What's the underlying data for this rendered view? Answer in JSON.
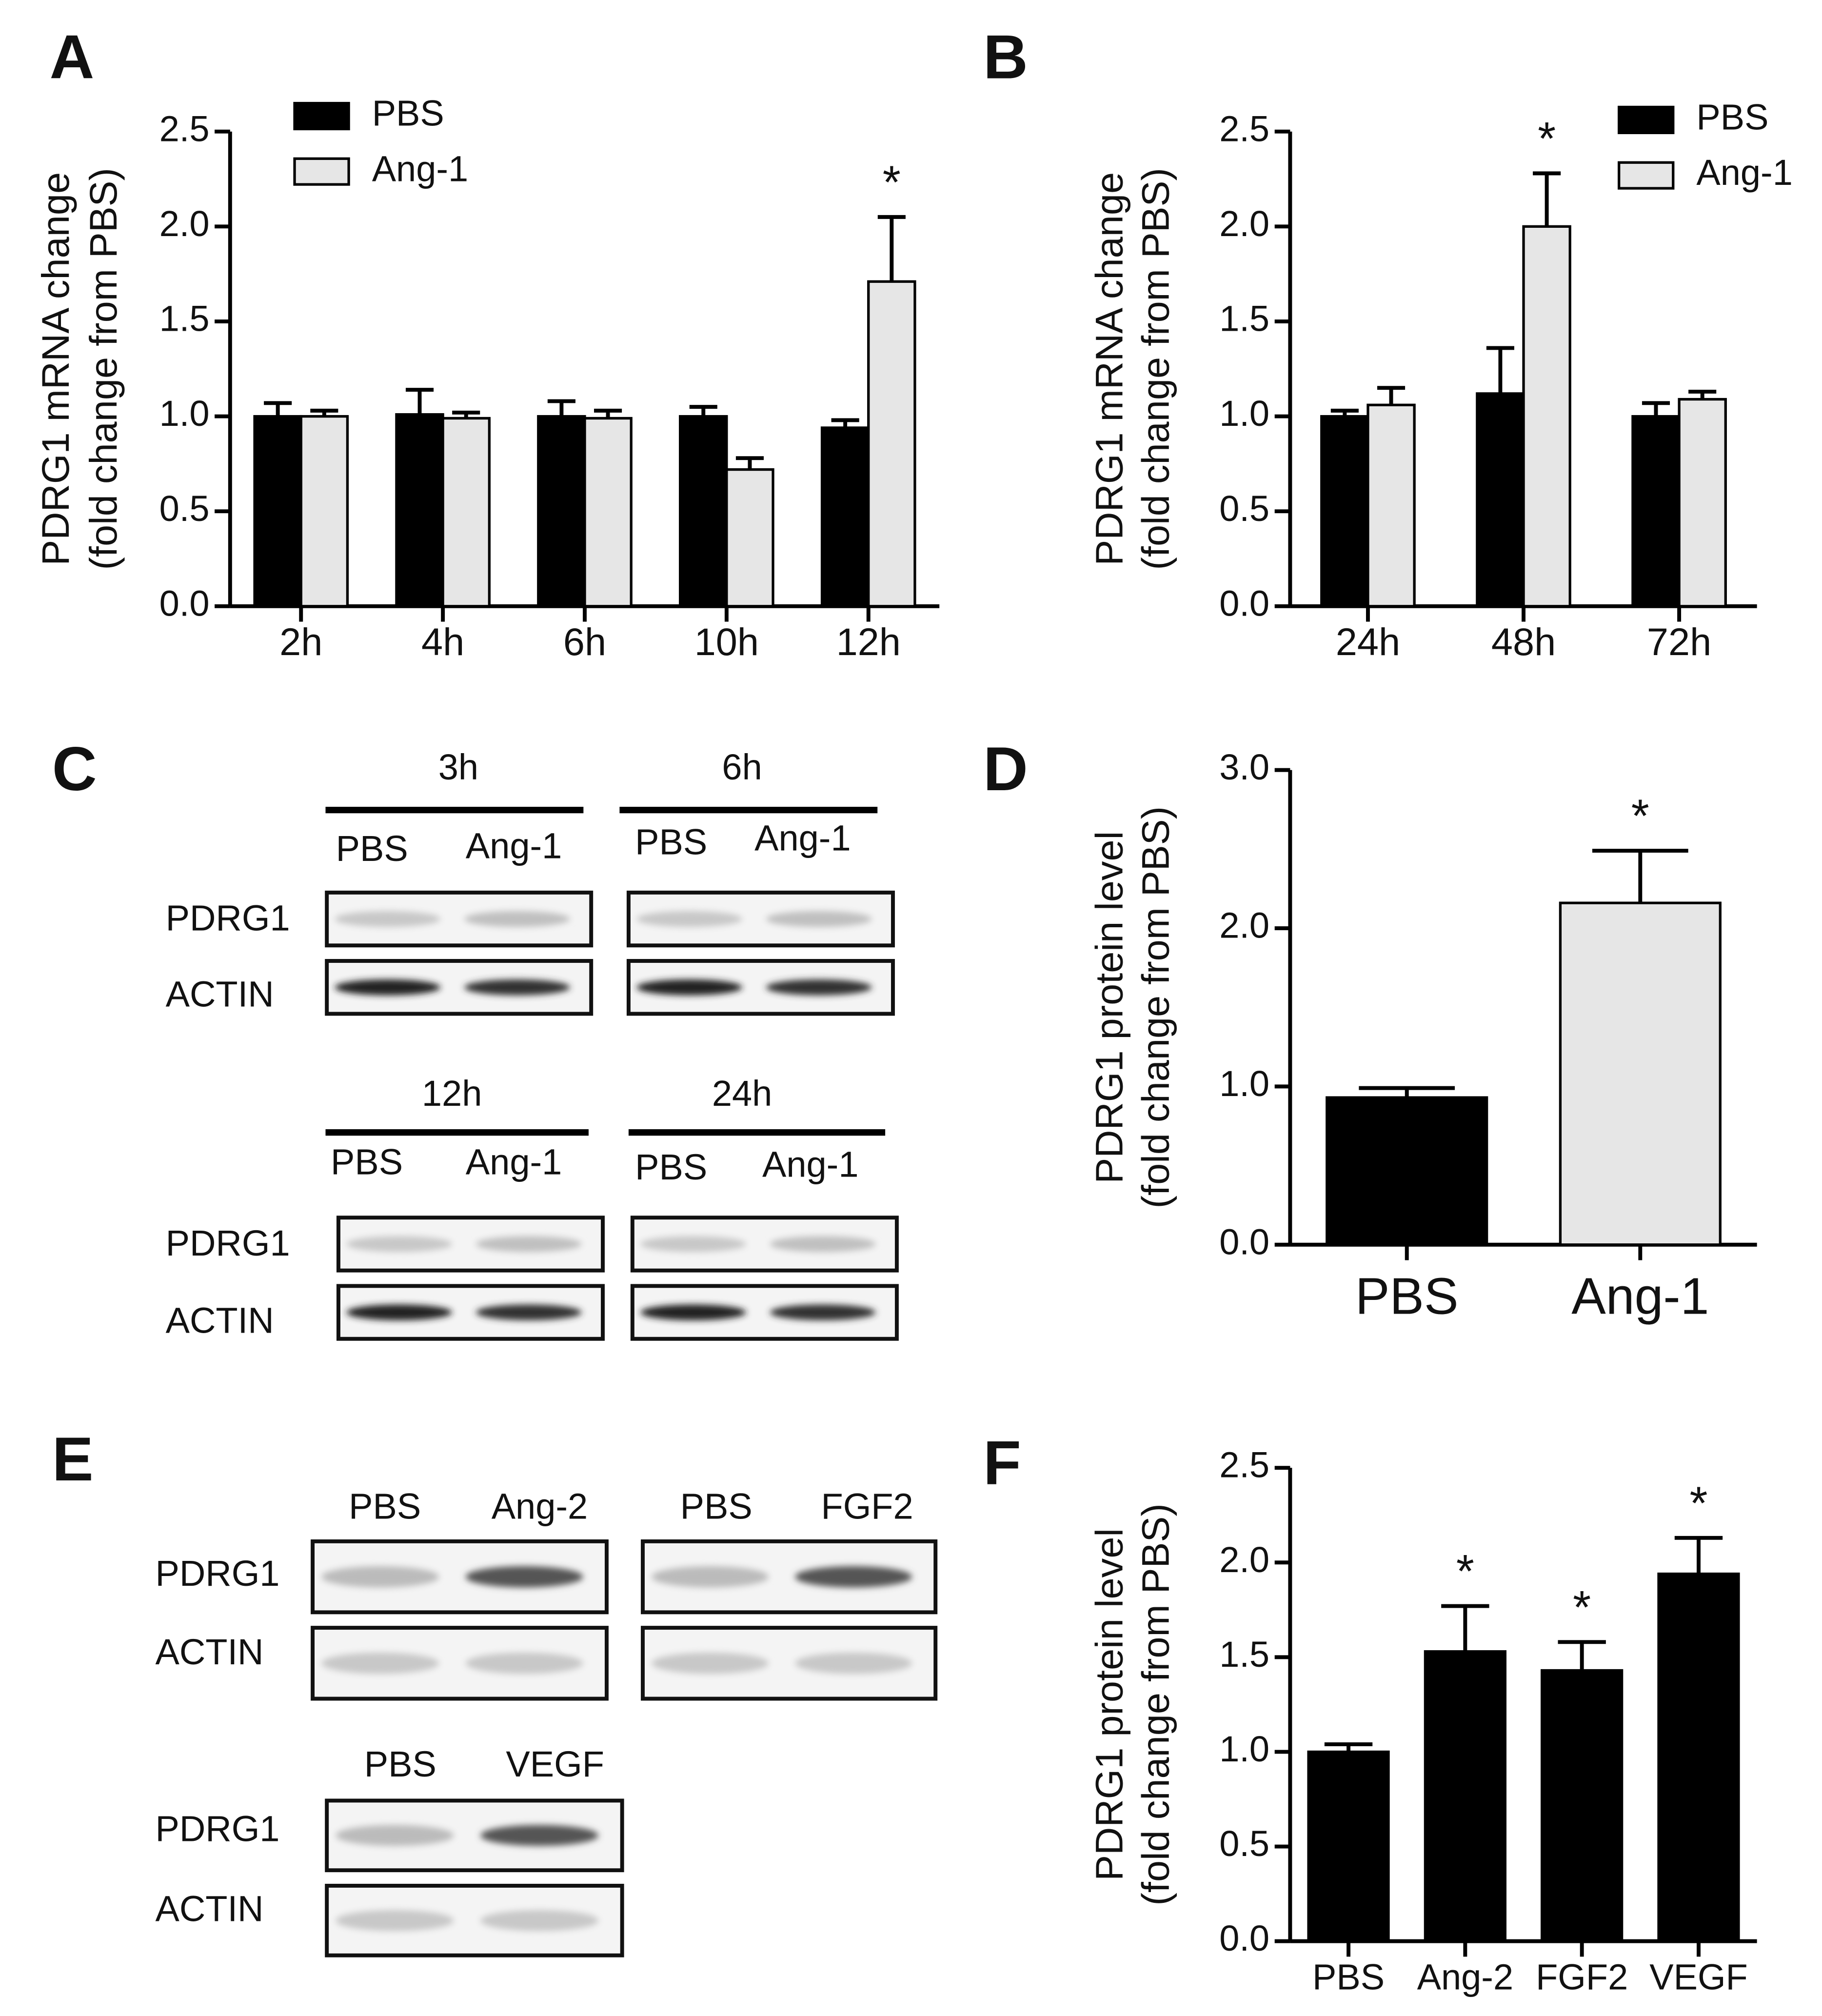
{
  "chart_data": [
    {
      "type": "bar",
      "panel": "A",
      "categories": [
        "2h",
        "4h",
        "6h",
        "10h",
        "12h"
      ],
      "series": [
        {
          "name": "PBS",
          "color": "#000000",
          "values": [
            1.0,
            1.01,
            1.0,
            1.0,
            0.94
          ],
          "errors": [
            0.07,
            0.13,
            0.08,
            0.05,
            0.04
          ],
          "markers": [
            null,
            null,
            null,
            null,
            null
          ]
        },
        {
          "name": "Ang-1",
          "color": "#e6e6e6",
          "values": [
            1.0,
            0.99,
            0.99,
            0.72,
            1.71
          ],
          "errors": [
            0.03,
            0.03,
            0.04,
            0.06,
            0.34
          ],
          "markers": [
            null,
            null,
            null,
            null,
            "*"
          ]
        }
      ],
      "ylabel": [
        "PDRG1 mRNA change",
        "(fold change from PBS)"
      ],
      "ylim": [
        0,
        2.5
      ],
      "yticks": [
        {
          "value": 0,
          "label": "0.0"
        },
        {
          "value": 0.5,
          "label": "0.5"
        },
        {
          "value": 1,
          "label": "1.0"
        },
        {
          "value": 1.5,
          "label": "1.5"
        },
        {
          "value": 2,
          "label": "2.0"
        },
        {
          "value": 2.5,
          "label": "2.5"
        }
      ],
      "legend": "upper left"
    },
    {
      "type": "bar",
      "panel": "B",
      "categories": [
        "24h",
        "48h",
        "72h"
      ],
      "series": [
        {
          "name": "PBS",
          "color": "#000000",
          "values": [
            1.0,
            1.12,
            1.0
          ],
          "errors": [
            0.03,
            0.24,
            0.07
          ],
          "markers": [
            null,
            null,
            null
          ]
        },
        {
          "name": "Ang-1",
          "color": "#e6e6e6",
          "values": [
            1.06,
            2.0,
            1.09
          ],
          "errors": [
            0.09,
            0.28,
            0.04
          ],
          "markers": [
            null,
            "*",
            null
          ]
        }
      ],
      "ylabel": [
        "PDRG1 mRNA change",
        "(fold change from PBS)"
      ],
      "ylim": [
        0,
        2.5
      ],
      "yticks": [
        {
          "value": 0,
          "label": "0.0"
        },
        {
          "value": 0.5,
          "label": "0.5"
        },
        {
          "value": 1,
          "label": "1.0"
        },
        {
          "value": 1.5,
          "label": "1.5"
        },
        {
          "value": 2,
          "label": "2.0"
        },
        {
          "value": 2.5,
          "label": "2.5"
        }
      ],
      "legend": "upper right"
    },
    {
      "type": "bar",
      "panel": "D",
      "categories": [
        "PBS",
        "Ang-1"
      ],
      "values": [
        0.93,
        2.16
      ],
      "errors": [
        0.06,
        0.33
      ],
      "colors": [
        "#000000",
        "#e6e6e6"
      ],
      "markers": [
        null,
        "*"
      ],
      "ylabel": [
        "PDRG1 protein level",
        "(fold change from PBS)"
      ],
      "ylim": [
        0,
        3
      ],
      "yticks": [
        {
          "value": 0,
          "label": "0.0"
        },
        {
          "value": 1,
          "label": "1.0"
        },
        {
          "value": 2,
          "label": "2.0"
        },
        {
          "value": 3,
          "label": "3.0"
        }
      ]
    },
    {
      "type": "bar",
      "panel": "F",
      "categories": [
        "PBS",
        "Ang-2",
        "FGF2",
        "VEGF"
      ],
      "values": [
        1.0,
        1.53,
        1.43,
        1.94
      ],
      "errors": [
        0.04,
        0.24,
        0.15,
        0.19
      ],
      "colors": [
        "#000000",
        "#000000",
        "#000000",
        "#000000"
      ],
      "markers": [
        null,
        "*",
        "*",
        "*"
      ],
      "ylabel": [
        "PDRG1 protein level",
        "(fold change from PBS)"
      ],
      "ylim": [
        0,
        2.5
      ],
      "yticks": [
        {
          "value": 0,
          "label": "0.0"
        },
        {
          "value": 0.5,
          "label": "0.5"
        },
        {
          "value": 1,
          "label": "1.0"
        },
        {
          "value": 1.5,
          "label": "1.5"
        },
        {
          "value": 2,
          "label": "2.0"
        },
        {
          "value": 2.5,
          "label": "2.5"
        }
      ]
    }
  ],
  "blots": [
    {
      "panel": "C",
      "blocks": [
        {
          "rows": [
            "PDRG1",
            "ACTIN"
          ],
          "groups": [
            {
              "title": "3h",
              "lanes": [
                "PBS",
                "Ang-1"
              ]
            },
            {
              "title": "6h",
              "lanes": [
                "PBS",
                "Ang-1"
              ]
            }
          ]
        },
        {
          "rows": [
            "PDRG1",
            "ACTIN"
          ],
          "groups": [
            {
              "title": "12h",
              "lanes": [
                "PBS",
                "Ang-1"
              ]
            },
            {
              "title": "24h",
              "lanes": [
                "PBS",
                "Ang-1"
              ]
            }
          ]
        }
      ]
    },
    {
      "panel": "E",
      "blocks": [
        {
          "rows": [
            "PDRG1",
            "ACTIN"
          ],
          "groups": [
            {
              "lanes": [
                "PBS",
                "Ang-2"
              ]
            },
            {
              "lanes": [
                "PBS",
                "FGF2"
              ]
            }
          ]
        },
        {
          "rows": [
            "PDRG1",
            "ACTIN"
          ],
          "groups": [
            {
              "lanes": [
                "PBS",
                "VEGF"
              ]
            }
          ]
        }
      ]
    }
  ]
}
